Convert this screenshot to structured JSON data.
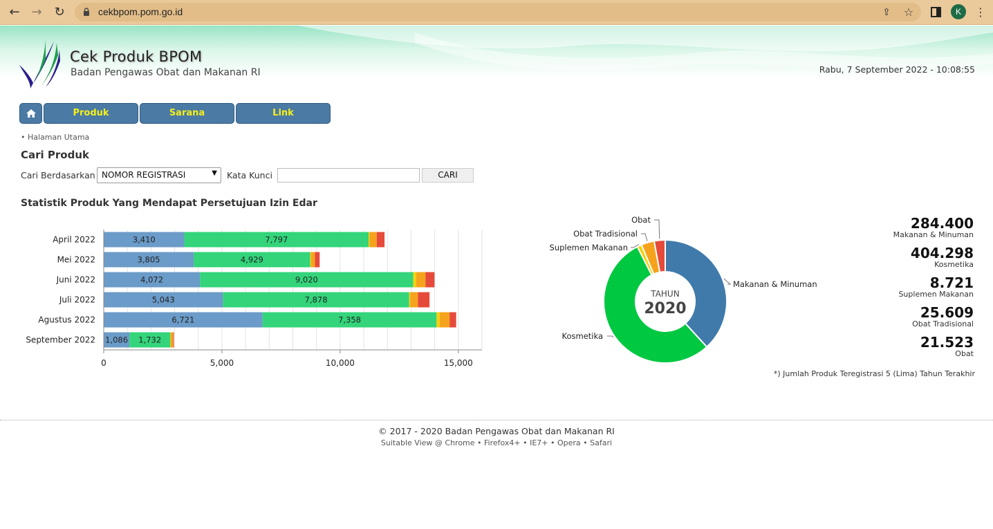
{
  "browser": {
    "url": "cekbpom.pom.go.id",
    "profile_initial": "K"
  },
  "header": {
    "title": "Cek Produk BPOM",
    "subtitle": "Badan Pengawas Obat dan Makanan RI",
    "datetime": "Rabu, 7 September 2022 - 10:08:55"
  },
  "nav": {
    "produk": "Produk",
    "sarana": "Sarana",
    "link": "Link"
  },
  "breadcrumb": "• Halaman Utama",
  "search": {
    "title": "Cari Produk",
    "by_label": "Cari Berdasarkan",
    "by_value": "NOMOR REGISTRASI",
    "keyword_label": "Kata Kunci",
    "keyword_value": "",
    "button": "CARI"
  },
  "stats_title": "Statistik Produk Yang Mendapat Persetujuan Izin Edar",
  "colors": {
    "makanan": "#6b9bc8",
    "kosmetika": "#33d47a",
    "suplemen": "#f5d10a",
    "tradisional": "#f5a31c",
    "obat": "#e64a3b",
    "pie_makanan": "#3f7aab",
    "pie_kosmetika": "#00c841",
    "nav": "#4b7aa4"
  },
  "chart_data": [
    {
      "type": "bar",
      "orientation": "horizontal",
      "stacked": true,
      "categories": [
        "April 2022",
        "Mei 2022",
        "Juni 2022",
        "Juli 2022",
        "Agustus 2022",
        "September 2022"
      ],
      "series": [
        {
          "values": [
            3410,
            3805,
            4072,
            5043,
            6721,
            1086
          ]
        },
        {
          "values": [
            7797,
            4929,
            9020,
            7878,
            7358,
            1732
          ]
        },
        {
          "values": [
            40,
            30,
            120,
            40,
            130,
            20
          ]
        },
        {
          "values": [
            300,
            170,
            400,
            330,
            420,
            100
          ]
        },
        {
          "values": [
            330,
            200,
            380,
            490,
            280,
            30
          ]
        }
      ],
      "labels_shown": [
        [
          "3,410",
          "3,805",
          "4,072",
          "5,043",
          "6,721",
          "1,086"
        ],
        [
          "7,797",
          "4,929",
          "9,020",
          "7,878",
          "7,358",
          "1,732"
        ]
      ],
      "xlim": [
        0,
        16000
      ],
      "xticks": [
        0,
        5000,
        10000,
        15000
      ],
      "xtick_labels": [
        "0",
        "5,000",
        "10,000",
        "15,000"
      ],
      "grid": true
    },
    {
      "type": "pie",
      "donut": true,
      "center_label": "TAHUN",
      "center_value": "2020",
      "slices": [
        {
          "name": "Makanan & Minuman",
          "value": 284400
        },
        {
          "name": "Kosmetika",
          "value": 404298
        },
        {
          "name": "Suplemen Makanan",
          "value": 8721
        },
        {
          "name": "Obat Tradisional",
          "value": 25609
        },
        {
          "name": "Obat",
          "value": 21523
        }
      ]
    }
  ],
  "totals": [
    {
      "value": "284.400",
      "name": "Makanan & Minuman"
    },
    {
      "value": "404.298",
      "name": "Kosmetika"
    },
    {
      "value": "8.721",
      "name": "Suplemen Makanan"
    },
    {
      "value": "25.609",
      "name": "Obat Tradisional"
    },
    {
      "value": "21.523",
      "name": "Obat"
    }
  ],
  "note": "*) Jumlah Produk Teregistrasi 5 (Lima) Tahun Terakhir",
  "footer": {
    "copyright": "© 2017 - 2020  Badan Pengawas Obat dan Makanan RI",
    "views": "Suitable View @ Chrome • Firefox4+ • IE7+ • Opera • Safari"
  }
}
